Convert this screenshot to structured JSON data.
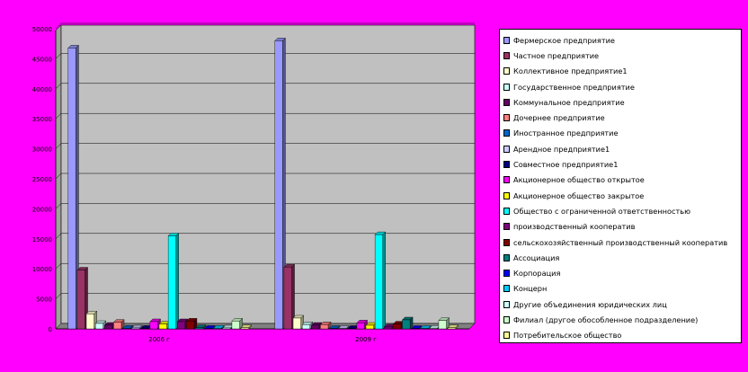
{
  "chart_data": {
    "type": "bar",
    "title": "",
    "xlabel": "",
    "ylabel": "",
    "ylim": [
      0,
      50000
    ],
    "yticks": [
      0,
      5000,
      10000,
      15000,
      20000,
      25000,
      30000,
      35000,
      40000,
      45000,
      50000
    ],
    "categories": [
      "2006 г",
      "2009 г"
    ],
    "grid": true,
    "legend_position": "right",
    "series": [
      {
        "name": "Фермерское предприятие",
        "color": "#9999ff",
        "values": [
          46800,
          48000
        ]
      },
      {
        "name": "Частное предприятие",
        "color": "#993366",
        "values": [
          9800,
          10300
        ]
      },
      {
        "name": "Коллективное предприятие1",
        "color": "#ffffcc",
        "values": [
          2500,
          1800
        ]
      },
      {
        "name": "Государственное предприятие",
        "color": "#ccffff",
        "values": [
          900,
          700
        ]
      },
      {
        "name": "Коммунальное предприятие",
        "color": "#660066",
        "values": [
          600,
          600
        ]
      },
      {
        "name": "Дочернее предприятие",
        "color": "#ff8080",
        "values": [
          1100,
          700
        ]
      },
      {
        "name": "Иностранное предприятие",
        "color": "#0066cc",
        "values": [
          100,
          80
        ]
      },
      {
        "name": "Арендное предприятие1",
        "color": "#ccccff",
        "values": [
          150,
          80
        ]
      },
      {
        "name": "Совместное предприятие1",
        "color": "#000080",
        "values": [
          100,
          80
        ]
      },
      {
        "name": "Акционерное общество открытое",
        "color": "#ff00ff",
        "values": [
          1200,
          1000
        ]
      },
      {
        "name": "Акционерное общество закрытое",
        "color": "#ffff00",
        "values": [
          800,
          600
        ]
      },
      {
        "name": "Общество с ограниченной ответственностью",
        "color": "#00ffff",
        "values": [
          15500,
          15700
        ]
      },
      {
        "name": "производственный кооператив",
        "color": "#800080",
        "values": [
          1200,
          300
        ]
      },
      {
        "name": "сельскохозяйственный производственный кооператив",
        "color": "#800000",
        "values": [
          1300,
          800
        ]
      },
      {
        "name": "Ассоциация",
        "color": "#008080",
        "values": [
          200,
          1500
        ]
      },
      {
        "name": "Корпорация",
        "color": "#0000ff",
        "values": [
          100,
          80
        ]
      },
      {
        "name": "Концерн",
        "color": "#00ccff",
        "values": [
          100,
          80
        ]
      },
      {
        "name": "Другие объединения юридических лиц",
        "color": "#ccffff",
        "values": [
          150,
          100
        ]
      },
      {
        "name": "Филиал (другое обособленное подразделение)",
        "color": "#ccffcc",
        "values": [
          1300,
          1400
        ]
      },
      {
        "name": "Потребительское общество",
        "color": "#ffff99",
        "values": [
          200,
          200
        ]
      }
    ]
  }
}
